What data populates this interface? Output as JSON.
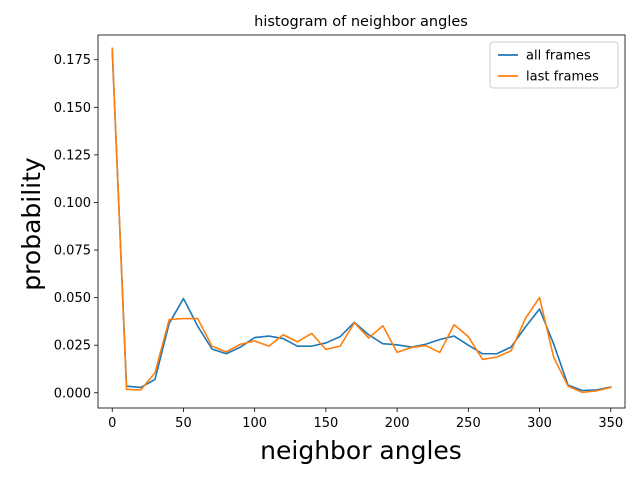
{
  "chart_data": {
    "type": "line",
    "title": "histogram of neighbor angles",
    "xlabel": "neighbor angles",
    "ylabel": "probability",
    "xlim": [
      -10,
      360
    ],
    "ylim": [
      -0.008,
      0.188
    ],
    "xticks": [
      0,
      50,
      100,
      150,
      200,
      250,
      300,
      350
    ],
    "yticks": [
      0.0,
      0.025,
      0.05,
      0.075,
      0.1,
      0.125,
      0.15,
      0.175
    ],
    "ytick_labels": [
      "0.000",
      "0.025",
      "0.050",
      "0.075",
      "0.100",
      "0.125",
      "0.150",
      "0.175"
    ],
    "grid": false,
    "legend_position": "top-right",
    "x": [
      0,
      10,
      20,
      30,
      40,
      50,
      60,
      70,
      80,
      90,
      100,
      110,
      120,
      130,
      140,
      150,
      160,
      170,
      180,
      190,
      200,
      210,
      220,
      230,
      240,
      250,
      260,
      270,
      280,
      290,
      300,
      310,
      320,
      330,
      340,
      350
    ],
    "series": [
      {
        "name": "all frames",
        "color": "#1f77b4",
        "values": [
          0.18,
          0.0035,
          0.0028,
          0.007,
          0.0365,
          0.0495,
          0.035,
          0.023,
          0.0205,
          0.024,
          0.029,
          0.0298,
          0.0285,
          0.0245,
          0.0245,
          0.0262,
          0.0295,
          0.037,
          0.0305,
          0.0258,
          0.0252,
          0.024,
          0.0255,
          0.028,
          0.0298,
          0.025,
          0.0205,
          0.0205,
          0.024,
          0.0345,
          0.044,
          0.0255,
          0.004,
          0.0012,
          0.0015,
          0.003
        ]
      },
      {
        "name": "last frames",
        "color": "#ff7f0e",
        "values": [
          0.181,
          0.0018,
          0.0015,
          0.0105,
          0.0385,
          0.039,
          0.039,
          0.0245,
          0.0215,
          0.0255,
          0.0272,
          0.0245,
          0.0305,
          0.0268,
          0.0312,
          0.0228,
          0.0245,
          0.0368,
          0.0288,
          0.0352,
          0.0212,
          0.0238,
          0.0248,
          0.0212,
          0.0358,
          0.0295,
          0.0175,
          0.0188,
          0.022,
          0.039,
          0.05,
          0.0185,
          0.0035,
          0.0002,
          0.001,
          0.0028
        ]
      }
    ]
  }
}
